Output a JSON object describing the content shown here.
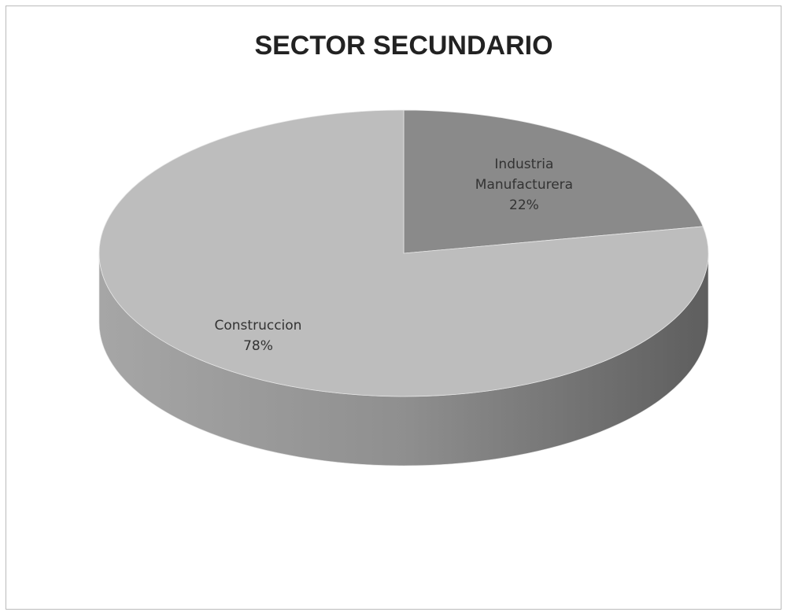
{
  "chart_data": {
    "type": "pie",
    "title": "SECTOR SECUNDARIO",
    "categories": [
      "Industria Manufacturera",
      "Construccion"
    ],
    "values": [
      22,
      78
    ],
    "value_labels": [
      "22%",
      "78%"
    ],
    "colors": [
      "#8a8a8a",
      "#bdbdbd"
    ]
  }
}
